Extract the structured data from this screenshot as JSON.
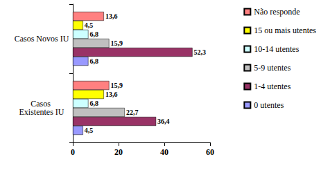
{
  "chart_data": {
    "type": "bar",
    "orientation": "horizontal",
    "categories": [
      "Casos Novos IU",
      "Casos Existentes IU"
    ],
    "series": [
      {
        "name": "Não responde",
        "color": "#ff8080",
        "values": [
          13.6,
          15.9
        ],
        "value_labels": [
          "13,6",
          "15,9"
        ]
      },
      {
        "name": "15 ou mais utentes",
        "color": "#ffff00",
        "values": [
          4.5,
          13.6
        ],
        "value_labels": [
          "4,5",
          "13,6"
        ]
      },
      {
        "name": "10-14 utentes",
        "color": "#ccffff",
        "values": [
          6.8,
          6.8
        ],
        "value_labels": [
          "6,8",
          "6,8"
        ]
      },
      {
        "name": "5-9 utentes",
        "color": "#c0c0c0",
        "values": [
          15.9,
          22.7
        ],
        "value_labels": [
          "15,9",
          "22,7"
        ]
      },
      {
        "name": "1-4 utentes",
        "color": "#993366",
        "values": [
          52.3,
          36.4
        ],
        "value_labels": [
          "52,3",
          "36,4"
        ]
      },
      {
        "name": "0 utentes",
        "color": "#9999ff",
        "values": [
          6.8,
          4.5
        ],
        "value_labels": [
          "6,8",
          "4,5"
        ]
      }
    ],
    "xlim": [
      0,
      60
    ],
    "xticks": [
      0,
      20,
      40,
      60
    ],
    "grid": false,
    "legend": "right",
    "data_labels": true
  }
}
